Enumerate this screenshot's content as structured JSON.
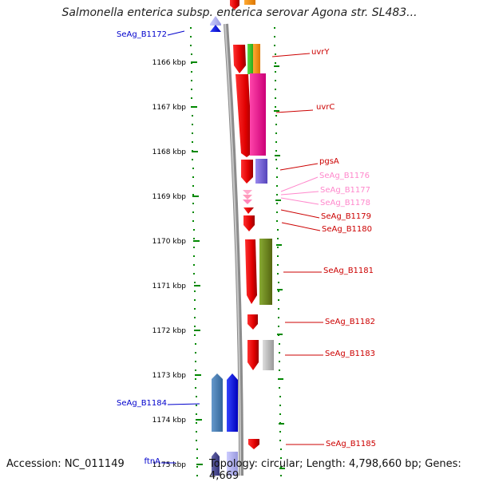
{
  "title": "Salmonella enterica subsp. enterica serovar Agona str. SL483...",
  "footer": {
    "accession": "Accession: NC_011149",
    "summary": "Topology: circular; Length: 4,798,660 bp; Genes: 4,669"
  },
  "axis": {
    "unit": "kbp",
    "ticks": [
      "1166 kbp",
      "1167 kbp",
      "1168 kbp",
      "1169 kbp",
      "1170 kbp",
      "1171 kbp",
      "1172 kbp",
      "1173 kbp",
      "1174 kbp",
      "1175 kbp"
    ]
  },
  "genes": [
    {
      "label": "SeAg_B1172",
      "color": "#0000cc",
      "side": "left"
    },
    {
      "label": "uvrY",
      "color": "#cc0000",
      "side": "right"
    },
    {
      "label": "uvrC",
      "color": "#cc0000",
      "side": "right"
    },
    {
      "label": "pgsA",
      "color": "#cc0000",
      "side": "right"
    },
    {
      "label": "SeAg_B1176",
      "color": "#ff88cc",
      "side": "right"
    },
    {
      "label": "SeAg_B1177",
      "color": "#ff88cc",
      "side": "right"
    },
    {
      "label": "SeAg_B1178",
      "color": "#ff88cc",
      "side": "right"
    },
    {
      "label": "SeAg_B1179",
      "color": "#cc0000",
      "side": "right"
    },
    {
      "label": "SeAg_B1180",
      "color": "#cc0000",
      "side": "right"
    },
    {
      "label": "SeAg_B1181",
      "color": "#cc0000",
      "side": "right"
    },
    {
      "label": "SeAg_B1182",
      "color": "#cc0000",
      "side": "right"
    },
    {
      "label": "SeAg_B1183",
      "color": "#cc0000",
      "side": "right"
    },
    {
      "label": "SeAg_B1184",
      "color": "#0000cc",
      "side": "left"
    },
    {
      "label": "SeAg_B1185",
      "color": "#cc0000",
      "side": "right"
    },
    {
      "label": "ftnA",
      "color": "#0000cc",
      "side": "left"
    }
  ],
  "colors": {
    "forward_gene": "#ff0000",
    "reverse_gene": "#0000ff",
    "tick_dots": "#008800",
    "backbone": "#888888"
  }
}
